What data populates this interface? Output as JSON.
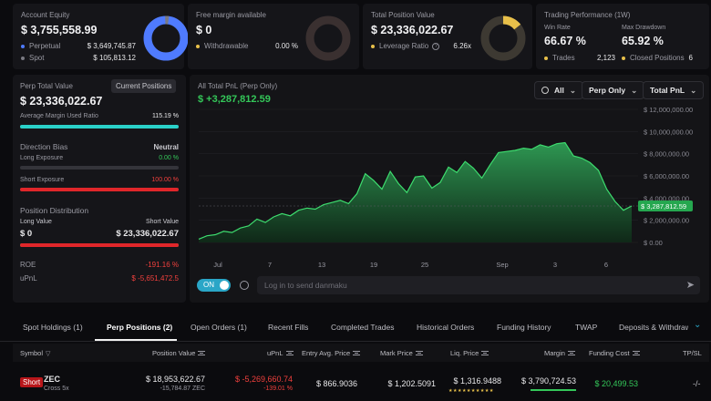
{
  "account_equity": {
    "title": "Account Equity",
    "value": "$ 3,755,558.99",
    "items": [
      {
        "label": "Perpetual",
        "value": "$ 3,649,745.87",
        "color": "#4f7bff"
      },
      {
        "label": "Spot",
        "value": "$ 105,813.12",
        "color": "#7a7a82"
      }
    ]
  },
  "free_margin": {
    "title": "Free margin available",
    "value": "$ 0",
    "withdrawable_label": "Withdrawable",
    "withdrawable_value": "0.00 %"
  },
  "total_position": {
    "title": "Total Position Value",
    "value": "$ 23,336,022.67",
    "leverage_label": "Leverage Ratio",
    "leverage_value": "6.26x",
    "accent": "#e8c04a"
  },
  "performance": {
    "title": "Trading Performance (1W)",
    "win_rate_label": "Win Rate",
    "win_rate": "66.67 %",
    "drawdown_label": "Max Drawdown",
    "drawdown": "65.92 %",
    "trades_label": "Trades",
    "trades": "2,123",
    "closed_label": "Closed Positions",
    "closed": "6"
  },
  "perp_panel": {
    "title": "Perp Total Value",
    "button": "Current Positions",
    "value": "$ 23,336,022.67",
    "margin_label": "Average Margin Used Ratio",
    "margin_value": "115.19 %",
    "margin_fill": 1.0,
    "direction_title": "Direction Bias",
    "direction_value": "Neutral",
    "long_label": "Long Exposure",
    "long_value": "0.00 %",
    "long_fill": 0.0,
    "short_label": "Short Exposure",
    "short_value": "100.00 %",
    "short_fill": 1.0,
    "distribution_title": "Position Distribution",
    "long_value_label": "Long Value",
    "short_value_label": "Short Value",
    "long_amount": "$ 0",
    "short_amount": "$ 23,336,022.67",
    "distribution_short_fill": 1.0,
    "roe_label": "ROE",
    "roe_value": "-191.16 %",
    "upnl_label": "uPnL",
    "upnl_value": "$ -5,651,472.5"
  },
  "chart_panel": {
    "title": "All Total PnL (Perp Only)",
    "value": "$ +3,287,812.59",
    "filters": [
      "All",
      "Perp Only",
      "Total PnL"
    ],
    "toggle_label": "ON",
    "danmaku_placeholder": "Log in to send danmaku"
  },
  "chart_data": {
    "type": "area",
    "y_ticks": [
      "$ 12,000,000.00",
      "$ 10,000,000.00",
      "$ 8,000,000.00",
      "$ 6,000,000.00",
      "$ 4,000,000.00",
      "$ 2,000,000.00",
      "$ 0.00"
    ],
    "x_ticks": [
      "Jul",
      "7",
      "13",
      "19",
      "25",
      "Sep",
      "3",
      "6"
    ],
    "current_label": "$ 3,287,812.59",
    "ylim": [
      0,
      12500000
    ],
    "values": [
      300000,
      600000,
      700000,
      1000000,
      900000,
      1300000,
      1500000,
      2100000,
      1800000,
      2300000,
      2600000,
      2400000,
      2900000,
      3100000,
      3000000,
      3400000,
      3600000,
      3800000,
      3500000,
      4400000,
      6200000,
      5600000,
      4800000,
      6400000,
      5300000,
      4500000,
      5900000,
      6000000,
      4900000,
      5400000,
      6800000,
      6300000,
      7300000,
      6700000,
      5800000,
      7000000,
      8100000,
      8200000,
      8300000,
      8500000,
      8400000,
      8800000,
      8600000,
      8900000,
      9000000,
      7800000,
      7600000,
      7200000,
      6500000,
      4800000,
      3700000,
      2900000,
      3287812.59
    ]
  },
  "tabs": [
    "Spot Holdings (1)",
    "Perp Positions (2)",
    "Open Orders (1)",
    "Recent Fills",
    "Completed Trades",
    "Historical Orders",
    "Funding History",
    "TWAP",
    "Deposits & Withdraw"
  ],
  "table": {
    "headers": [
      "Symbol",
      "Position Value",
      "uPnL",
      "Entry Avg. Price",
      "Mark Price",
      "Liq. Price",
      "Margin",
      "Funding Cost",
      "TP/SL"
    ],
    "rows": [
      {
        "side": "Short",
        "symbol": "ZEC",
        "sub": "Cross 5x",
        "position_value": "$ 18,953,622.67",
        "position_sub": "-15,784.87 ZEC",
        "upnl": "$ -5,269,660.74",
        "upnl_sub": "-139.01 %",
        "entry": "$ 866.9036",
        "mark": "$ 1,202.5091",
        "liq": "$ 1,316.9488",
        "margin": "$ 3,790,724.53",
        "funding": "$ 20,499.53",
        "tpsl": "-/-"
      }
    ]
  }
}
